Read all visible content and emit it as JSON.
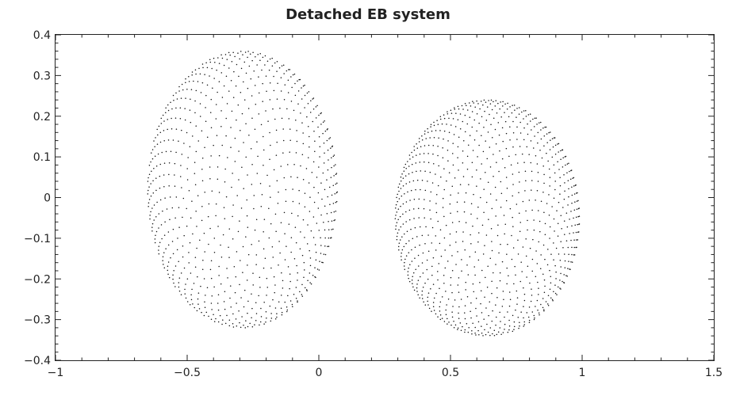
{
  "chart_data": {
    "type": "scatter",
    "title": "Detached EB system",
    "xlabel": "",
    "ylabel": "",
    "xlim": [
      -1,
      1.5
    ],
    "ylim": [
      -0.4,
      0.4
    ],
    "x_ticks": [
      -1,
      -0.5,
      0,
      0.5,
      1,
      1.5
    ],
    "x_tick_labels": [
      "−1",
      "−0.5",
      "0",
      "0.5",
      "1",
      "1.5"
    ],
    "y_ticks": [
      -0.4,
      -0.3,
      -0.2,
      -0.1,
      0,
      0.1,
      0.2,
      0.3,
      0.4
    ],
    "y_tick_labels": [
      "−0.4",
      "−0.3",
      "−0.2",
      "−0.1",
      "0",
      "0.1",
      "0.2",
      "0.3",
      "0.4"
    ],
    "minor_ticks_per_major": 5,
    "grid": false,
    "legend": "none",
    "marker_color": "#111111",
    "series": [
      {
        "center": [
          -0.29,
          0.02
        ],
        "semi_axes": [
          0.36,
          0.34
        ],
        "x_extent": [
          -0.64,
          0.08
        ],
        "y_extent": [
          -0.32,
          0.36
        ]
      },
      {
        "center": [
          0.64,
          -0.05
        ],
        "semi_axes": [
          0.35,
          0.29
        ],
        "x_extent": [
          0.29,
          0.99
        ],
        "y_extent": [
          -0.34,
          0.24
        ]
      }
    ]
  }
}
